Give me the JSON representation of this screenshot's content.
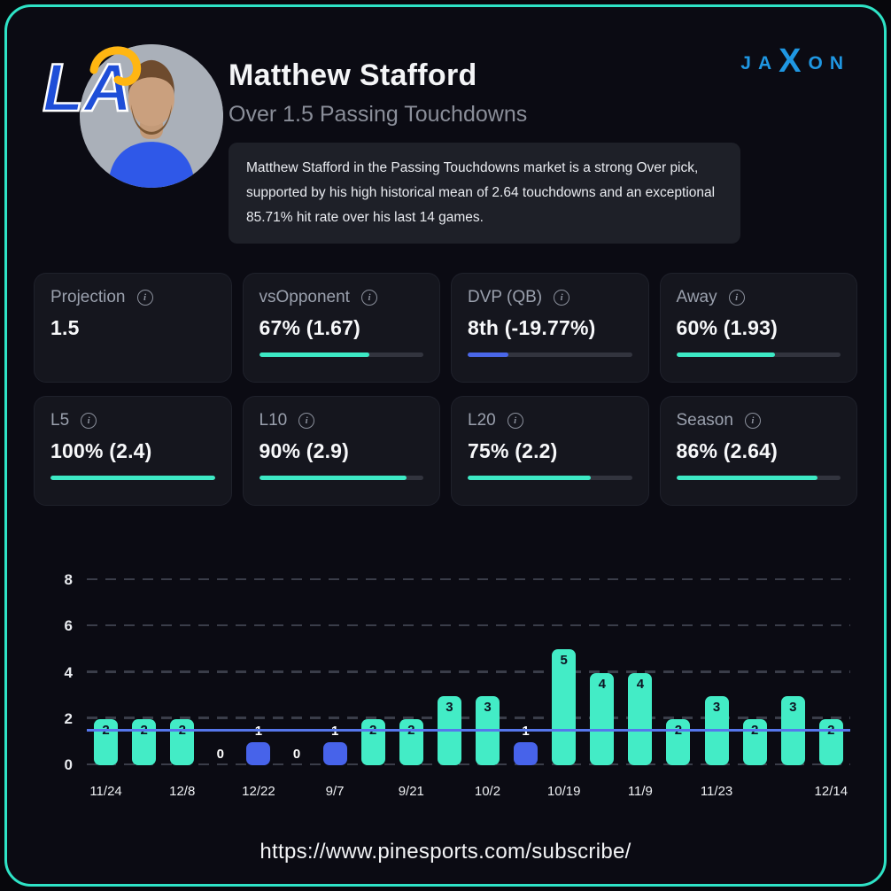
{
  "header": {
    "title": "Matthew Stafford",
    "subtitle": "Over 1.5 Passing Touchdowns",
    "description": "Matthew Stafford in the Passing Touchdowns market is a strong Over pick, supported by his high historical mean of 2.64 touchdowns and an exceptional 85.71% hit rate over his last 14 games.",
    "brand": "JAXON"
  },
  "icons": {
    "team_logo": "la-rams-logo",
    "player_avatar": "matthew-stafford-photo",
    "info": "circle-i"
  },
  "stats": [
    {
      "label": "Projection",
      "value": "1.5",
      "progress": null,
      "color": null
    },
    {
      "label": "vsOpponent",
      "value": "67% (1.67)",
      "progress": 67,
      "color": "teal"
    },
    {
      "label": "DVP (QB)",
      "value": "8th (-19.77%)",
      "progress": 25,
      "color": "blue"
    },
    {
      "label": "Away",
      "value": "60% (1.93)",
      "progress": 60,
      "color": "teal"
    },
    {
      "label": "L5",
      "value": "100% (2.4)",
      "progress": 100,
      "color": "teal"
    },
    {
      "label": "L10",
      "value": "90% (2.9)",
      "progress": 90,
      "color": "teal"
    },
    {
      "label": "L20",
      "value": "75% (2.2)",
      "progress": 75,
      "color": "teal"
    },
    {
      "label": "Season",
      "value": "86% (2.64)",
      "progress": 86,
      "color": "teal"
    }
  ],
  "chart_data": {
    "type": "bar",
    "values": [
      2,
      2,
      2,
      0,
      1,
      0,
      1,
      2,
      2,
      3,
      3,
      1,
      5,
      4,
      4,
      2,
      3,
      2,
      3,
      2
    ],
    "x_labels": [
      "11/24",
      "",
      "12/8",
      "",
      "12/22",
      "",
      "9/7",
      "",
      "9/21",
      "",
      "10/2",
      "",
      "10/19",
      "",
      "11/9",
      "",
      "11/23",
      "",
      "",
      "12/14"
    ],
    "yticks": [
      0,
      2,
      4,
      6,
      8
    ],
    "ylim": [
      0,
      8
    ],
    "reference_line": 1.5,
    "bar_color_over": "#43ecc6",
    "bar_color_under": "#4763ea",
    "line_color": "#5677ec",
    "grid": true,
    "legend": "none"
  },
  "footer": {
    "url": "https://www.pinesports.com/subscribe/"
  },
  "colors": {
    "teal": "#3de9c5",
    "blue": "#4a67e9",
    "border": "#2ee3c6"
  }
}
